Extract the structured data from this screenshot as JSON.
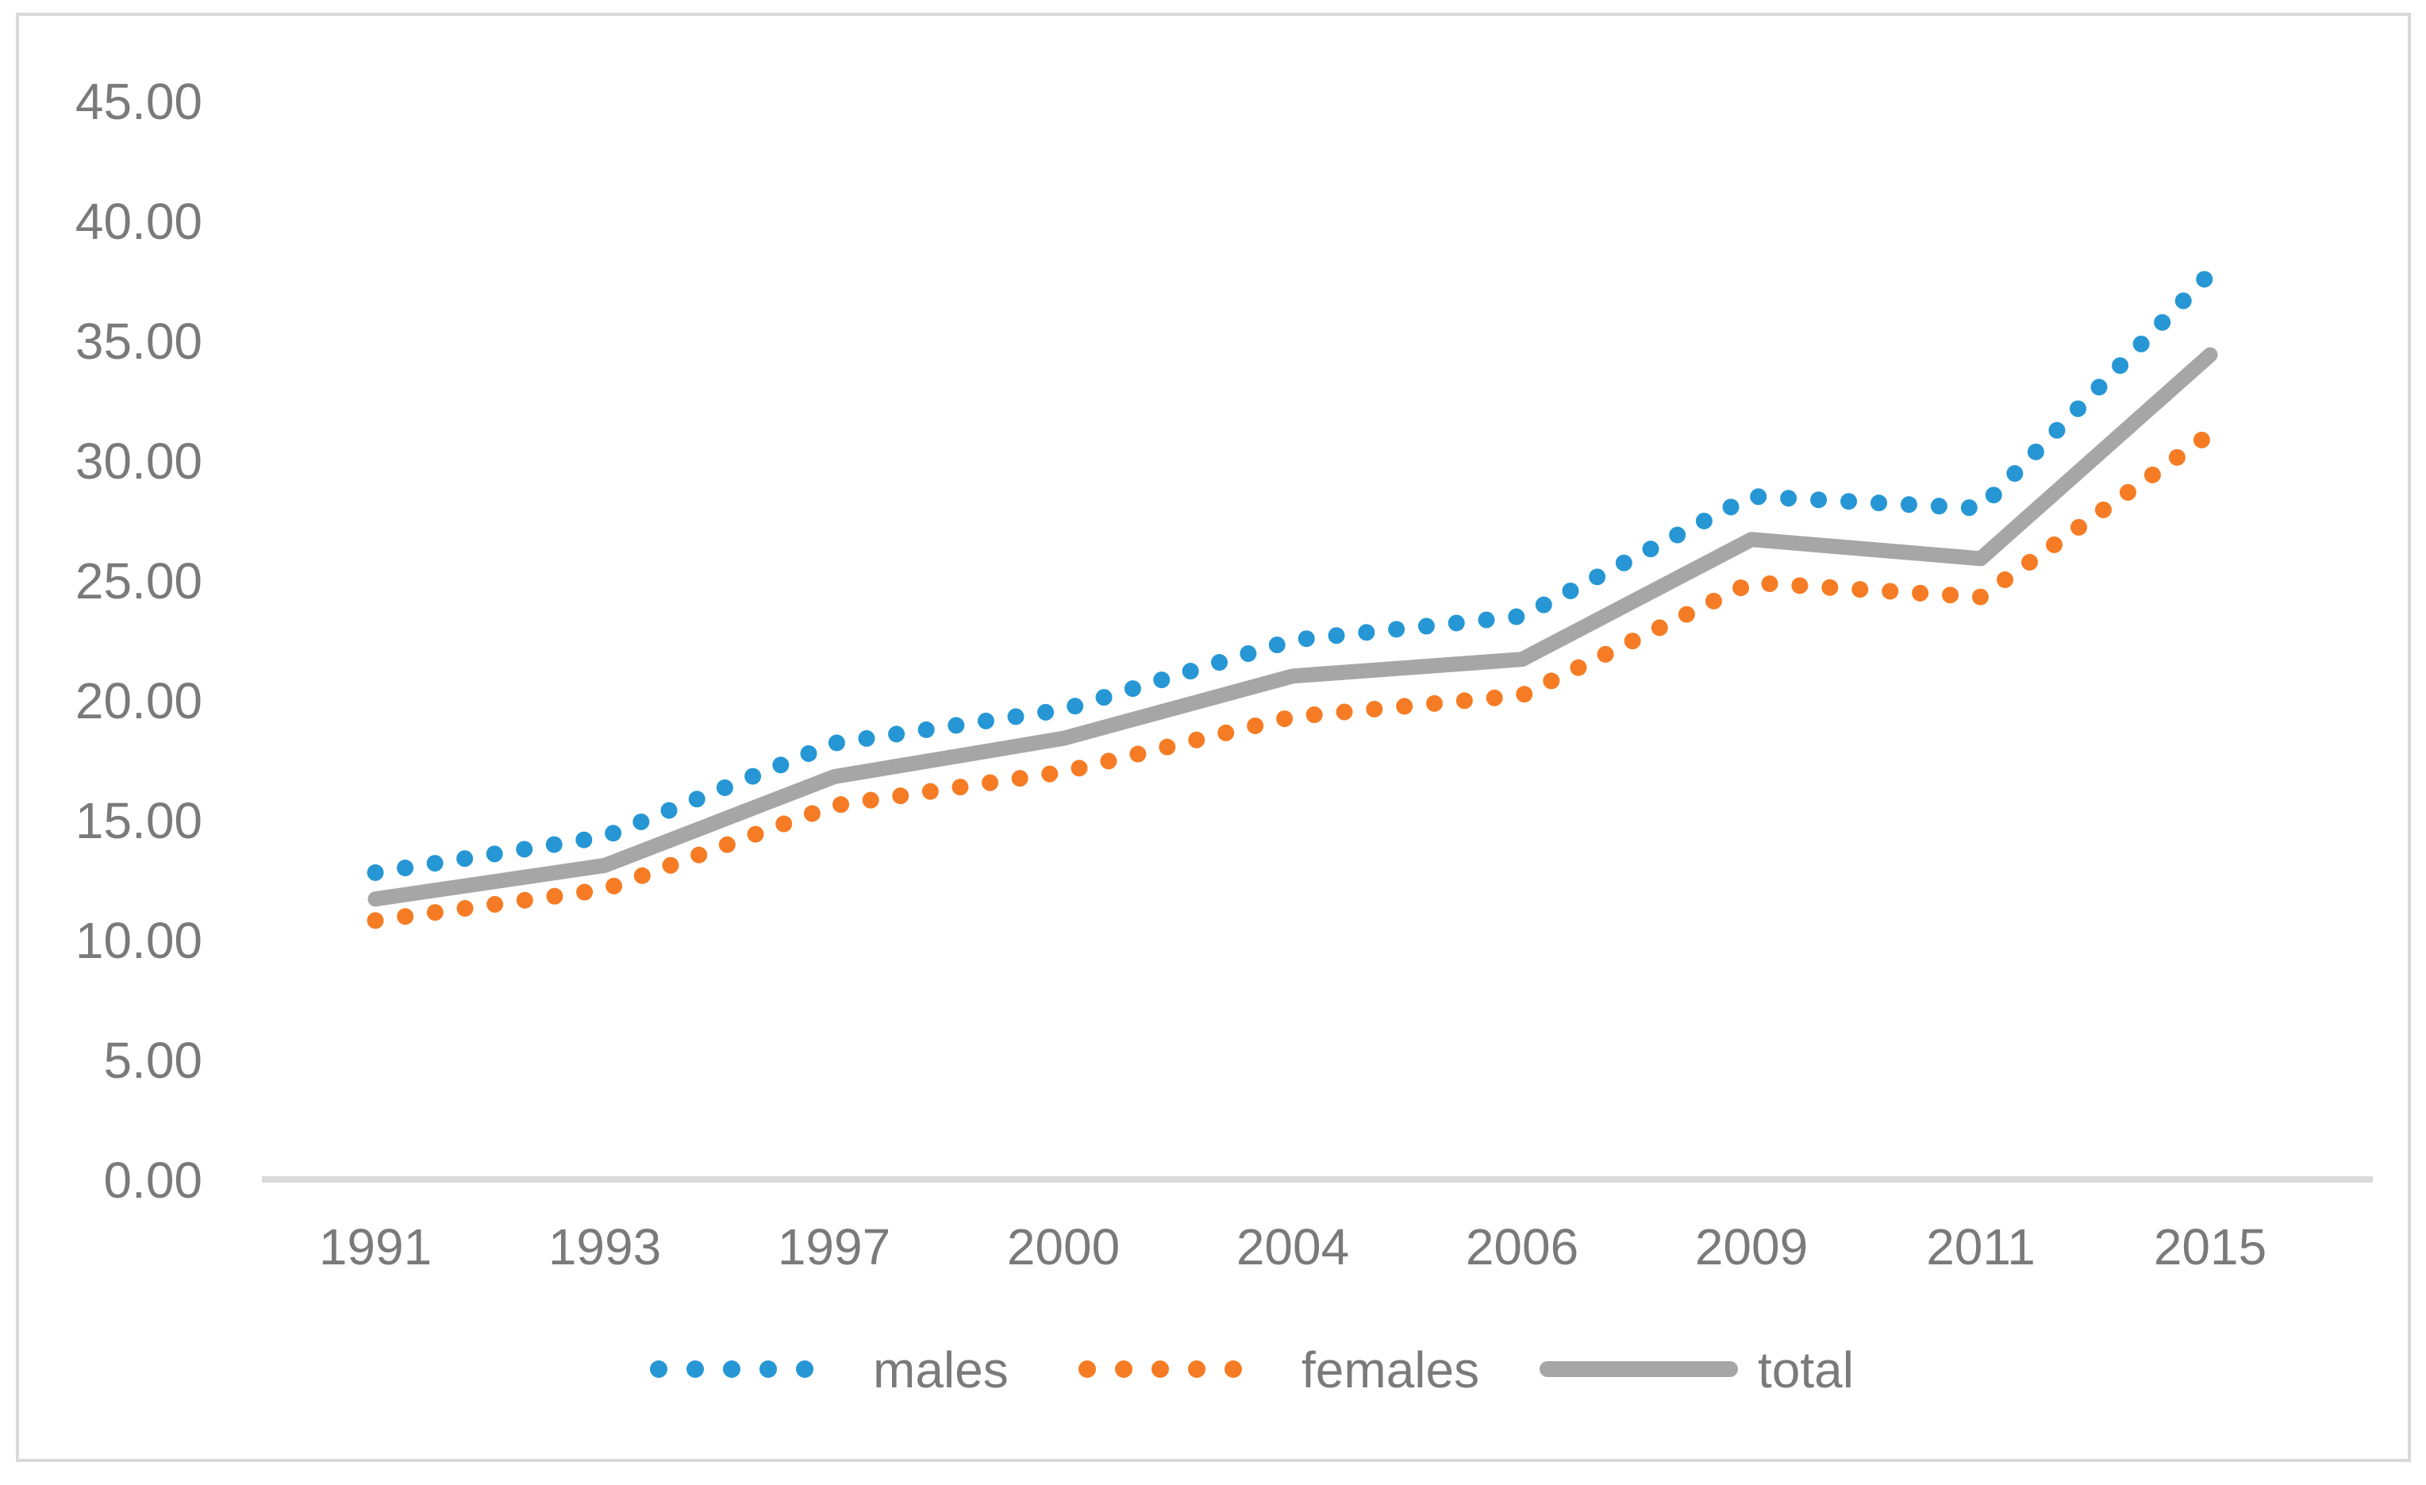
{
  "chart_data": {
    "type": "line",
    "title": "",
    "categories": [
      "1991",
      "1993",
      "1997",
      "2000",
      "2004",
      "2006",
      "2009",
      "2011",
      "2015"
    ],
    "series": [
      {
        "name": "males",
        "color": "#2697D4",
        "style": "dotted",
        "values": [
          12.8,
          14.3,
          18.2,
          19.6,
          22.5,
          23.5,
          28.5,
          28.0,
          37.8
        ]
      },
      {
        "name": "females",
        "color": "#F57C24",
        "style": "dotted",
        "values": [
          10.8,
          12.1,
          15.6,
          17.0,
          19.3,
          20.2,
          24.9,
          24.3,
          31.1
        ]
      },
      {
        "name": "total",
        "color": "#A6A6A6",
        "style": "solid",
        "values": [
          11.7,
          13.1,
          16.8,
          18.4,
          21.0,
          21.7,
          26.7,
          25.9,
          34.4
        ]
      }
    ],
    "xlabel": "",
    "ylabel": "",
    "ylim": [
      0,
      45
    ],
    "ytick_step": 5,
    "yticks": [
      "0.00",
      "5.00",
      "10.00",
      "15.00",
      "20.00",
      "25.00",
      "30.00",
      "35.00",
      "40.00",
      "45.00"
    ],
    "grid": false,
    "legend_position": "bottom",
    "colors": {
      "background": "#FFFFFF",
      "border": "#D9D9D9",
      "axis_line": "#D9D9D9",
      "label_text": "#7A7A7A"
    }
  }
}
